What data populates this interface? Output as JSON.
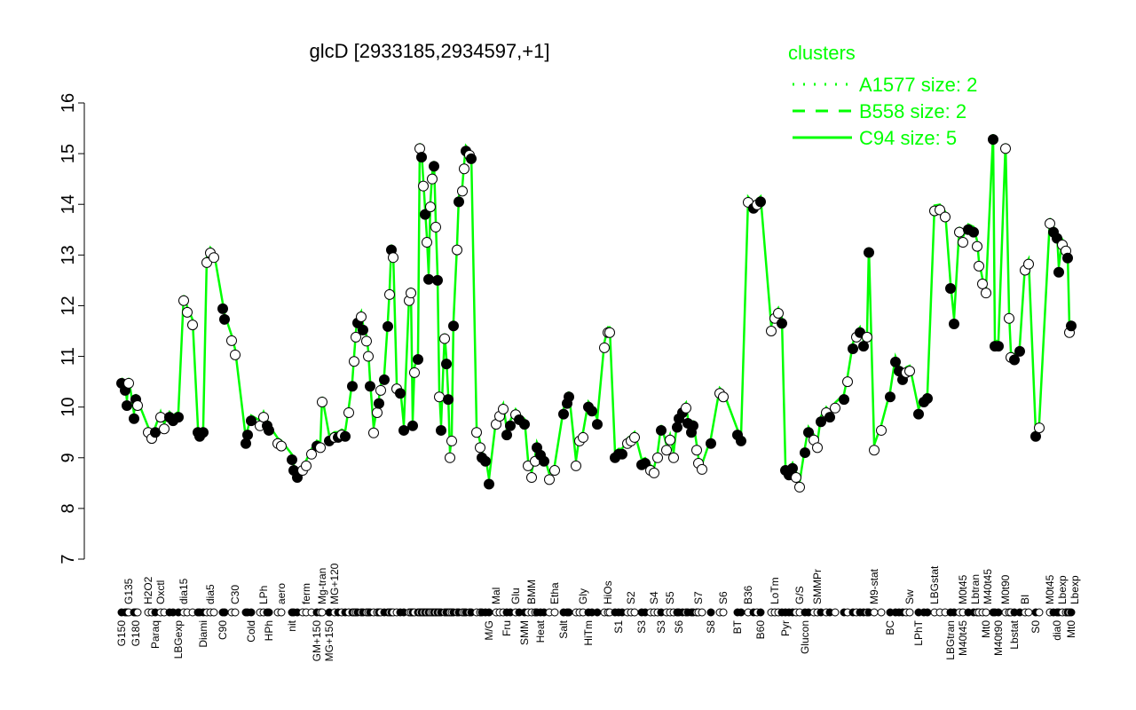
{
  "chart_data": {
    "type": "scatter",
    "title": "glcD [2933185,2934597,+1]",
    "xlabel": "",
    "ylabel": "",
    "ylim": [
      7,
      16
    ],
    "yticks": [
      "7",
      "8",
      "9",
      "10",
      "11",
      "12",
      "13",
      "14",
      "15",
      "16"
    ],
    "grid": false,
    "legend": {
      "title": "clusters",
      "placement": "top-right",
      "entries": [
        {
          "label": "A1577 size: 2",
          "style": "dotted"
        },
        {
          "label": "B558 size: 2",
          "style": "dashed"
        },
        {
          "label": "C94 size: 5",
          "style": "solid"
        }
      ]
    },
    "colors": {
      "cluster_line": "#00ff00",
      "legend_text": "#00ff00",
      "points": "#000000"
    },
    "x_labels_top": [
      {
        "x": 5,
        "label": "G135"
      },
      {
        "x": 16,
        "label": "H2O2"
      },
      {
        "x": 23,
        "label": "Oxctl"
      },
      {
        "x": 36,
        "label": "dia15"
      },
      {
        "x": 51,
        "label": "dia5"
      },
      {
        "x": 65,
        "label": "C30"
      },
      {
        "x": 81,
        "label": "LPh"
      },
      {
        "x": 91,
        "label": "aero"
      },
      {
        "x": 105,
        "label": "ferm"
      },
      {
        "x": 114,
        "label": "Mg-tran"
      },
      {
        "x": 121,
        "label": "MG+120"
      },
      {
        "x": 212,
        "label": "Mal"
      },
      {
        "x": 223,
        "label": "Glu"
      },
      {
        "x": 232,
        "label": "BMM"
      },
      {
        "x": 245,
        "label": "Etha"
      },
      {
        "x": 261,
        "label": "Gly"
      },
      {
        "x": 275,
        "label": "HiOs"
      },
      {
        "x": 288,
        "label": "S2"
      },
      {
        "x": 301,
        "label": "S4"
      },
      {
        "x": 310,
        "label": "S5"
      },
      {
        "x": 326,
        "label": "S7"
      },
      {
        "x": 340,
        "label": "S6"
      },
      {
        "x": 354,
        "label": "B36"
      },
      {
        "x": 369,
        "label": "LoTm"
      },
      {
        "x": 383,
        "label": "G/S"
      },
      {
        "x": 393,
        "label": "SMMPr"
      },
      {
        "x": 425,
        "label": "M9-stat"
      },
      {
        "x": 445,
        "label": "Sw"
      },
      {
        "x": 459,
        "label": "LBGstat"
      },
      {
        "x": 475,
        "label": "M0t45"
      },
      {
        "x": 481,
        "label": "Lbtran"
      },
      {
        "x": 486,
        "label": "M40t45"
      },
      {
        "x": 499,
        "label": "M0t90"
      },
      {
        "x": 510,
        "label": "BI"
      },
      {
        "x": 524,
        "label": "M0t45"
      },
      {
        "x": 531,
        "label": "Lbexp"
      },
      {
        "x": 535,
        "label": "Lbexp"
      }
    ],
    "x_labels_bottom": [
      {
        "x": 1,
        "label": "G150"
      },
      {
        "x": 9,
        "label": "G180"
      },
      {
        "x": 20,
        "label": "Paraq"
      },
      {
        "x": 33,
        "label": "LBGexp"
      },
      {
        "x": 47,
        "label": "Diami"
      },
      {
        "x": 58,
        "label": "C90"
      },
      {
        "x": 74,
        "label": "Cold"
      },
      {
        "x": 84,
        "label": "HPh"
      },
      {
        "x": 97,
        "label": "nit"
      },
      {
        "x": 111,
        "label": "GM+150"
      },
      {
        "x": 118,
        "label": "MG+150"
      },
      {
        "x": 208,
        "label": "M/G"
      },
      {
        "x": 218,
        "label": "Fru"
      },
      {
        "x": 228,
        "label": "SMM"
      },
      {
        "x": 237,
        "label": "Heat"
      },
      {
        "x": 250,
        "label": "Salt"
      },
      {
        "x": 264,
        "label": "HiTm"
      },
      {
        "x": 281,
        "label": "S1"
      },
      {
        "x": 294,
        "label": "S3"
      },
      {
        "x": 305,
        "label": "S3"
      },
      {
        "x": 315,
        "label": "S6"
      },
      {
        "x": 333,
        "label": "S8"
      },
      {
        "x": 348,
        "label": "BT"
      },
      {
        "x": 361,
        "label": "B60"
      },
      {
        "x": 375,
        "label": "Pyr"
      },
      {
        "x": 386,
        "label": "Glucon"
      },
      {
        "x": 434,
        "label": "BC"
      },
      {
        "x": 450,
        "label": "LPhT"
      },
      {
        "x": 468,
        "label": "LBGtran"
      },
      {
        "x": 475,
        "label": "M40t45"
      },
      {
        "x": 488,
        "label": "Mt0"
      },
      {
        "x": 492,
        "label": "M40t90"
      },
      {
        "x": 504,
        "label": "Lbstat"
      },
      {
        "x": 516,
        "label": "S0"
      },
      {
        "x": 528,
        "label": "dia0"
      },
      {
        "x": 536,
        "label": "Mt0"
      }
    ],
    "points": [
      [
        1,
        10.47,
        1
      ],
      [
        3,
        10.33,
        1
      ],
      [
        4,
        10.03,
        1
      ],
      [
        5,
        10.47,
        0
      ],
      [
        8,
        9.77,
        1
      ],
      [
        9,
        10.15,
        1
      ],
      [
        10,
        10.03,
        0
      ],
      [
        16,
        9.5,
        0
      ],
      [
        18,
        9.38,
        0
      ],
      [
        20,
        9.5,
        1
      ],
      [
        23,
        9.8,
        0
      ],
      [
        25,
        9.57,
        0
      ],
      [
        28,
        9.8,
        1
      ],
      [
        30,
        9.73,
        1
      ],
      [
        33,
        9.8,
        1
      ],
      [
        36,
        12.1,
        0
      ],
      [
        38,
        11.87,
        0
      ],
      [
        41,
        11.62,
        0
      ],
      [
        44,
        9.5,
        1
      ],
      [
        45,
        9.42,
        1
      ],
      [
        47,
        9.5,
        1
      ],
      [
        49,
        12.85,
        0
      ],
      [
        51,
        13.04,
        0
      ],
      [
        53,
        12.95,
        0
      ],
      [
        58,
        11.94,
        1
      ],
      [
        59,
        11.73,
        1
      ],
      [
        63,
        11.31,
        0
      ],
      [
        65,
        11.03,
        0
      ],
      [
        71,
        9.28,
        1
      ],
      [
        72,
        9.45,
        1
      ],
      [
        74,
        9.73,
        1
      ],
      [
        79,
        9.63,
        0
      ],
      [
        81,
        9.8,
        0
      ],
      [
        83,
        9.63,
        1
      ],
      [
        84,
        9.54,
        1
      ],
      [
        89,
        9.28,
        0
      ],
      [
        91,
        9.23,
        0
      ],
      [
        97,
        8.96,
        1
      ],
      [
        98,
        8.75,
        1
      ],
      [
        100,
        8.61,
        1
      ],
      [
        103,
        8.75,
        0
      ],
      [
        105,
        8.84,
        0
      ],
      [
        108,
        9.07,
        0
      ],
      [
        111,
        9.23,
        1
      ],
      [
        113,
        9.2,
        0
      ],
      [
        114,
        10.1,
        0
      ],
      [
        118,
        9.33,
        1
      ],
      [
        121,
        9.4,
        0
      ],
      [
        123,
        9.4,
        1
      ],
      [
        125,
        9.45,
        0
      ],
      [
        127,
        9.42,
        1
      ],
      [
        129,
        9.89,
        0
      ],
      [
        131,
        10.41,
        1
      ],
      [
        132,
        10.9,
        0
      ],
      [
        133,
        11.38,
        0
      ],
      [
        134,
        11.66,
        1
      ],
      [
        136,
        11.78,
        0
      ],
      [
        137,
        11.52,
        1
      ],
      [
        139,
        11.3,
        0
      ],
      [
        140,
        11.0,
        0
      ],
      [
        141,
        10.41,
        1
      ],
      [
        143,
        9.49,
        0
      ],
      [
        145,
        9.89,
        0
      ],
      [
        146,
        10.07,
        1
      ],
      [
        147,
        10.33,
        0
      ],
      [
        149,
        10.54,
        1
      ],
      [
        151,
        11.59,
        1
      ],
      [
        152,
        12.22,
        0
      ],
      [
        153,
        13.1,
        1
      ],
      [
        154,
        12.95,
        0
      ],
      [
        156,
        10.36,
        0
      ],
      [
        158,
        10.27,
        1
      ],
      [
        160,
        9.54,
        1
      ],
      [
        163,
        12.1,
        0
      ],
      [
        164,
        12.25,
        0
      ],
      [
        165,
        9.63,
        1
      ],
      [
        166,
        10.68,
        0
      ],
      [
        168,
        10.94,
        1
      ],
      [
        169,
        15.1,
        0
      ],
      [
        170,
        14.93,
        1
      ],
      [
        171,
        14.36,
        0
      ],
      [
        172,
        13.8,
        1
      ],
      [
        173,
        13.25,
        0
      ],
      [
        174,
        12.52,
        1
      ],
      [
        175,
        13.95,
        0
      ],
      [
        176,
        14.5,
        0
      ],
      [
        177,
        14.75,
        1
      ],
      [
        178,
        13.55,
        0
      ],
      [
        179,
        12.5,
        1
      ],
      [
        180,
        10.2,
        0
      ],
      [
        181,
        9.54,
        1
      ],
      [
        183,
        11.35,
        0
      ],
      [
        184,
        10.85,
        1
      ],
      [
        185,
        10.15,
        1
      ],
      [
        186,
        9.0,
        0
      ],
      [
        187,
        9.33,
        0
      ],
      [
        188,
        11.6,
        1
      ],
      [
        190,
        13.1,
        0
      ],
      [
        191,
        14.05,
        1
      ],
      [
        193,
        14.26,
        0
      ],
      [
        194,
        14.7,
        0
      ],
      [
        195,
        15.05,
        1
      ],
      [
        197,
        14.97,
        0
      ],
      [
        198,
        14.9,
        1
      ],
      [
        201,
        9.5,
        0
      ],
      [
        203,
        9.2,
        0
      ],
      [
        204,
        9.0,
        1
      ],
      [
        206,
        8.93,
        1
      ],
      [
        208,
        8.48,
        1
      ],
      [
        212,
        9.66,
        0
      ],
      [
        214,
        9.82,
        0
      ],
      [
        216,
        9.96,
        0
      ],
      [
        218,
        9.45,
        1
      ],
      [
        220,
        9.63,
        1
      ],
      [
        223,
        9.85,
        0
      ],
      [
        225,
        9.75,
        1
      ],
      [
        228,
        9.66,
        1
      ],
      [
        230,
        8.84,
        0
      ],
      [
        232,
        8.61,
        0
      ],
      [
        234,
        8.93,
        0
      ],
      [
        235,
        9.2,
        1
      ],
      [
        237,
        9.05,
        1
      ],
      [
        239,
        8.93,
        1
      ],
      [
        242,
        8.57,
        0
      ],
      [
        245,
        8.75,
        0
      ],
      [
        250,
        9.86,
        1
      ],
      [
        252,
        10.07,
        1
      ],
      [
        253,
        10.2,
        1
      ],
      [
        257,
        8.84,
        0
      ],
      [
        259,
        9.33,
        0
      ],
      [
        261,
        9.4,
        0
      ],
      [
        264,
        10.0,
        1
      ],
      [
        266,
        9.92,
        1
      ],
      [
        269,
        9.66,
        1
      ],
      [
        273,
        11.17,
        0
      ],
      [
        275,
        11.47,
        0
      ],
      [
        276,
        11.47,
        0
      ],
      [
        279,
        9.0,
        1
      ],
      [
        281,
        9.07,
        1
      ],
      [
        283,
        9.07,
        1
      ],
      [
        286,
        9.28,
        0
      ],
      [
        288,
        9.33,
        0
      ],
      [
        290,
        9.4,
        0
      ],
      [
        294,
        8.86,
        1
      ],
      [
        296,
        8.89,
        1
      ],
      [
        299,
        8.75,
        0
      ],
      [
        301,
        8.7,
        0
      ],
      [
        303,
        9.0,
        0
      ],
      [
        305,
        9.54,
        1
      ],
      [
        308,
        9.15,
        0
      ],
      [
        310,
        9.35,
        0
      ],
      [
        312,
        9.0,
        0
      ],
      [
        314,
        9.6,
        1
      ],
      [
        315,
        9.77,
        1
      ],
      [
        317,
        9.89,
        1
      ],
      [
        319,
        9.98,
        0
      ],
      [
        320,
        9.68,
        1
      ],
      [
        322,
        9.5,
        1
      ],
      [
        323,
        9.63,
        1
      ],
      [
        325,
        9.15,
        0
      ],
      [
        326,
        8.89,
        0
      ],
      [
        328,
        8.77,
        0
      ],
      [
        333,
        9.28,
        1
      ],
      [
        338,
        10.27,
        0
      ],
      [
        340,
        10.2,
        0
      ],
      [
        348,
        9.45,
        1
      ],
      [
        350,
        9.33,
        1
      ],
      [
        354,
        14.04,
        0
      ],
      [
        357,
        13.92,
        1
      ],
      [
        359,
        13.99,
        0
      ],
      [
        361,
        14.05,
        1
      ],
      [
        367,
        11.5,
        0
      ],
      [
        369,
        11.75,
        0
      ],
      [
        371,
        11.85,
        0
      ],
      [
        373,
        11.65,
        1
      ],
      [
        375,
        8.75,
        1
      ],
      [
        377,
        8.66,
        1
      ],
      [
        379,
        8.79,
        1
      ],
      [
        381,
        8.61,
        0
      ],
      [
        383,
        8.42,
        0
      ],
      [
        386,
        9.1,
        1
      ],
      [
        388,
        9.5,
        1
      ],
      [
        391,
        9.35,
        0
      ],
      [
        393,
        9.2,
        0
      ],
      [
        395,
        9.71,
        1
      ],
      [
        398,
        9.89,
        0
      ],
      [
        400,
        9.8,
        1
      ],
      [
        403,
        9.98,
        0
      ],
      [
        408,
        10.15,
        1
      ],
      [
        410,
        10.5,
        0
      ],
      [
        413,
        11.15,
        1
      ],
      [
        415,
        11.38,
        0
      ],
      [
        417,
        11.47,
        1
      ],
      [
        419,
        11.2,
        1
      ],
      [
        421,
        11.38,
        0
      ],
      [
        422,
        13.05,
        1
      ],
      [
        425,
        9.15,
        0
      ],
      [
        429,
        9.54,
        0
      ],
      [
        434,
        10.2,
        1
      ],
      [
        437,
        10.89,
        1
      ],
      [
        439,
        10.71,
        1
      ],
      [
        441,
        10.54,
        1
      ],
      [
        443,
        10.68,
        0
      ],
      [
        445,
        10.71,
        0
      ],
      [
        450,
        9.86,
        1
      ],
      [
        453,
        10.1,
        1
      ],
      [
        455,
        10.17,
        1
      ],
      [
        459,
        13.87,
        0
      ],
      [
        462,
        13.89,
        0
      ],
      [
        465,
        13.75,
        0
      ],
      [
        468,
        12.34,
        1
      ],
      [
        470,
        11.64,
        1
      ],
      [
        473,
        13.45,
        0
      ],
      [
        475,
        13.25,
        0
      ],
      [
        478,
        13.5,
        1
      ],
      [
        481,
        13.45,
        1
      ],
      [
        483,
        13.17,
        0
      ],
      [
        484,
        12.78,
        0
      ],
      [
        486,
        12.43,
        0
      ],
      [
        488,
        12.25,
        0
      ],
      [
        492,
        15.28,
        1
      ],
      [
        493,
        11.2,
        1
      ],
      [
        495,
        11.2,
        1
      ],
      [
        499,
        15.1,
        0
      ],
      [
        501,
        11.75,
        0
      ],
      [
        502,
        10.98,
        0
      ],
      [
        504,
        10.93,
        1
      ],
      [
        507,
        11.1,
        1
      ],
      [
        510,
        12.7,
        0
      ],
      [
        512,
        12.82,
        0
      ],
      [
        516,
        9.42,
        1
      ],
      [
        518,
        9.59,
        0
      ],
      [
        524,
        13.62,
        0
      ],
      [
        526,
        13.45,
        1
      ],
      [
        528,
        13.33,
        1
      ],
      [
        529,
        12.66,
        1
      ],
      [
        531,
        13.2,
        0
      ],
      [
        533,
        13.08,
        0
      ],
      [
        534,
        12.94,
        1
      ],
      [
        535,
        11.47,
        0
      ],
      [
        536,
        11.6,
        1
      ]
    ]
  }
}
